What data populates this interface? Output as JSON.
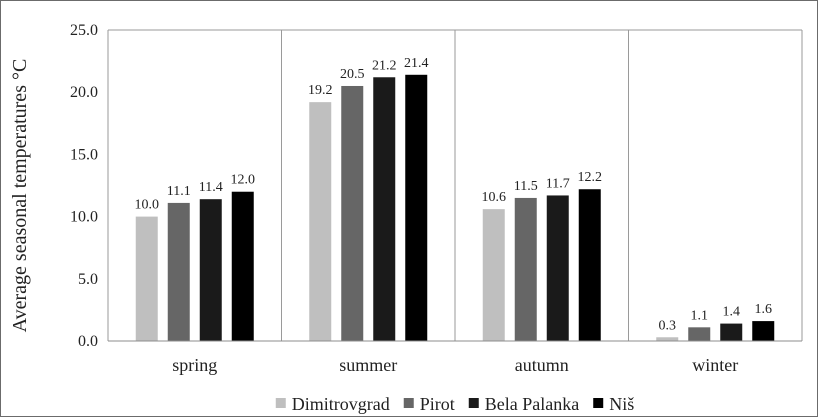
{
  "chart_data": {
    "type": "bar",
    "title": "",
    "xlabel": "",
    "ylabel": "Average seasonal temperatures °C",
    "ylim": [
      0,
      25
    ],
    "yticks": [
      "0.0",
      "5.0",
      "10.0",
      "15.0",
      "20.0",
      "25.0"
    ],
    "grid": false,
    "legend_position": "bottom",
    "categories": [
      "spring",
      "summer",
      "autumn",
      "winter"
    ],
    "series": [
      {
        "name": "Dimitrovgrad",
        "color": "#bfbfbf",
        "values": [
          10.0,
          19.2,
          10.6,
          0.3
        ],
        "labels": [
          "10.0",
          "19.2",
          "10.6",
          "0.3"
        ]
      },
      {
        "name": "Pirot",
        "color": "#666666",
        "values": [
          11.1,
          20.5,
          11.5,
          1.1
        ],
        "labels": [
          "11.1",
          "20.5",
          "11.5",
          "1.1"
        ]
      },
      {
        "name": "Bela Palanka",
        "color": "#1a1a1a",
        "values": [
          11.4,
          21.2,
          11.7,
          1.4
        ],
        "labels": [
          "11.4",
          "21.2",
          "11.7",
          "1.4"
        ]
      },
      {
        "name": "Niš",
        "color": "#000000",
        "values": [
          12.0,
          21.4,
          12.2,
          1.6
        ],
        "labels": [
          "12.0",
          "21.4",
          "12.2",
          "1.6"
        ]
      }
    ]
  }
}
